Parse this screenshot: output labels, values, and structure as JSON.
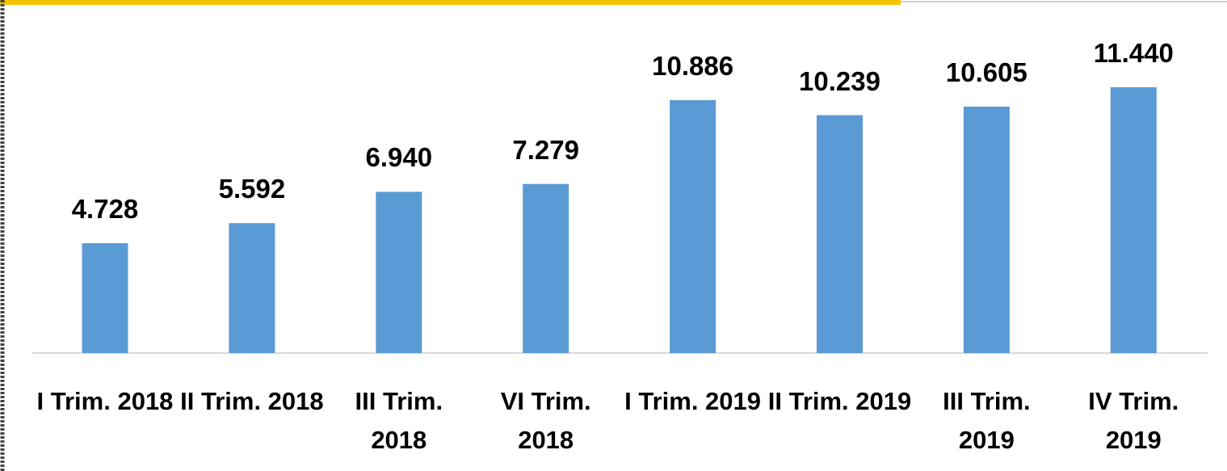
{
  "chart_data": {
    "type": "bar",
    "categories": [
      "I Trim. 2018",
      "II Trim. 2018",
      "III Trim. 2018",
      "VI Trim. 2018",
      "I Trim. 2019",
      "II Trim. 2019",
      "III Trim. 2019",
      "IV Trim. 2019"
    ],
    "values": [
      4728,
      5592,
      6940,
      7279,
      10886,
      10239,
      10605,
      11440
    ],
    "value_labels": [
      "4.728",
      "5.592",
      "6.940",
      "7.279",
      "10.886",
      "10.239",
      "10.605",
      "11.440"
    ],
    "color": "#5b9bd5"
  }
}
